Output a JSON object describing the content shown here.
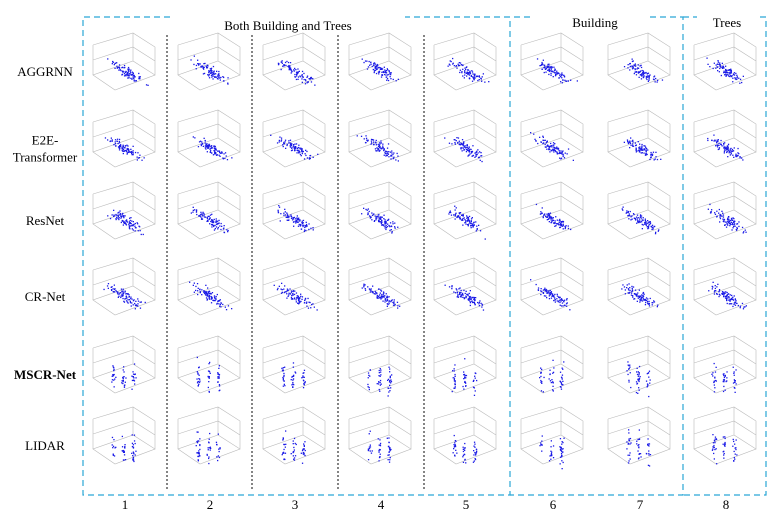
{
  "figure": {
    "groups": [
      "Both Building and Trees",
      "Building",
      "Trees"
    ],
    "rows": [
      {
        "lines": [
          "AGGRNN"
        ]
      },
      {
        "lines": [
          "E2E-",
          "Transformer"
        ]
      },
      {
        "lines": [
          "ResNet"
        ]
      },
      {
        "lines": [
          "CR-Net"
        ]
      },
      {
        "lines": [
          "MSCR-Net"
        ]
      },
      {
        "lines": [
          "LIDAR"
        ]
      }
    ],
    "columns": [
      "1",
      "2",
      "3",
      "4",
      "5",
      "6",
      "7",
      "8"
    ]
  }
}
